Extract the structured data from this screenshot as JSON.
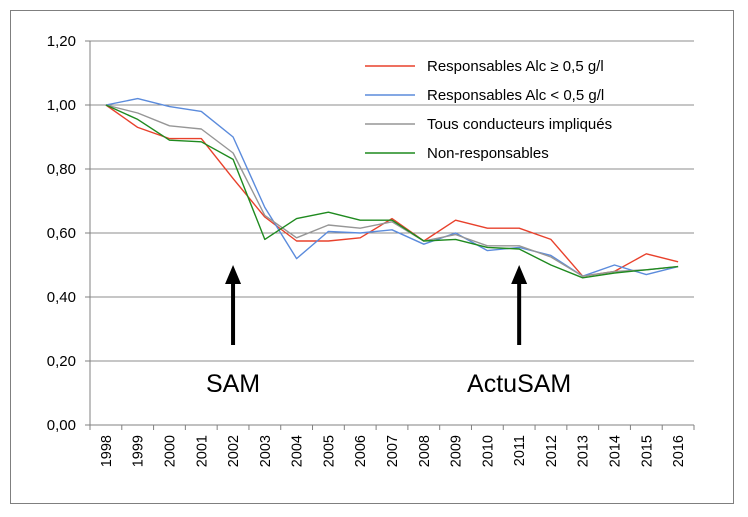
{
  "chart_data": {
    "type": "line",
    "title": "",
    "xlabel": "",
    "ylabel": "",
    "ylim": [
      0,
      1.2
    ],
    "yticks": [
      "0,00",
      "0,20",
      "0,40",
      "0,60",
      "0,80",
      "1,00",
      "1,20"
    ],
    "ytick_values": [
      0,
      0.2,
      0.4,
      0.6,
      0.8,
      1.0,
      1.2
    ],
    "x": [
      "1998",
      "1999",
      "2000",
      "2001",
      "2002",
      "2003",
      "2004",
      "2005",
      "2006",
      "2007",
      "2008",
      "2009",
      "2010",
      "2011",
      "2012",
      "2013",
      "2014",
      "2015",
      "2016"
    ],
    "grid": "horizontal",
    "legend_position": "top-right",
    "series": [
      {
        "name": "Responsables Alc ≥ 0,5 g/l",
        "color": "#e8412c",
        "values": [
          1.0,
          0.93,
          0.895,
          0.895,
          0.77,
          0.65,
          0.575,
          0.575,
          0.585,
          0.645,
          0.575,
          0.64,
          0.615,
          0.615,
          0.58,
          0.465,
          0.48,
          0.535,
          0.51
        ]
      },
      {
        "name": "Responsables Alc < 0,5 g/l",
        "color": "#5b8bdc",
        "values": [
          1.0,
          1.02,
          0.995,
          0.98,
          0.9,
          0.68,
          0.52,
          0.605,
          0.6,
          0.61,
          0.565,
          0.6,
          0.545,
          0.555,
          0.53,
          0.465,
          0.5,
          0.47,
          0.495
        ]
      },
      {
        "name": "Tous conducteurs impliqués",
        "color": "#969696",
        "values": [
          1.0,
          0.975,
          0.935,
          0.925,
          0.85,
          0.655,
          0.585,
          0.625,
          0.615,
          0.635,
          0.575,
          0.595,
          0.56,
          0.56,
          0.525,
          0.465,
          0.48,
          0.485,
          0.495
        ]
      },
      {
        "name": "Non-responsables",
        "color": "#1f8a1f",
        "values": [
          1.0,
          0.955,
          0.89,
          0.885,
          0.83,
          0.58,
          0.645,
          0.665,
          0.64,
          0.64,
          0.575,
          0.58,
          0.555,
          0.55,
          0.5,
          0.46,
          0.475,
          0.485,
          0.495
        ]
      }
    ],
    "annotations": [
      {
        "text": "SAM",
        "x": "2002"
      },
      {
        "text": "ActuSAM",
        "x": "2011"
      }
    ]
  }
}
